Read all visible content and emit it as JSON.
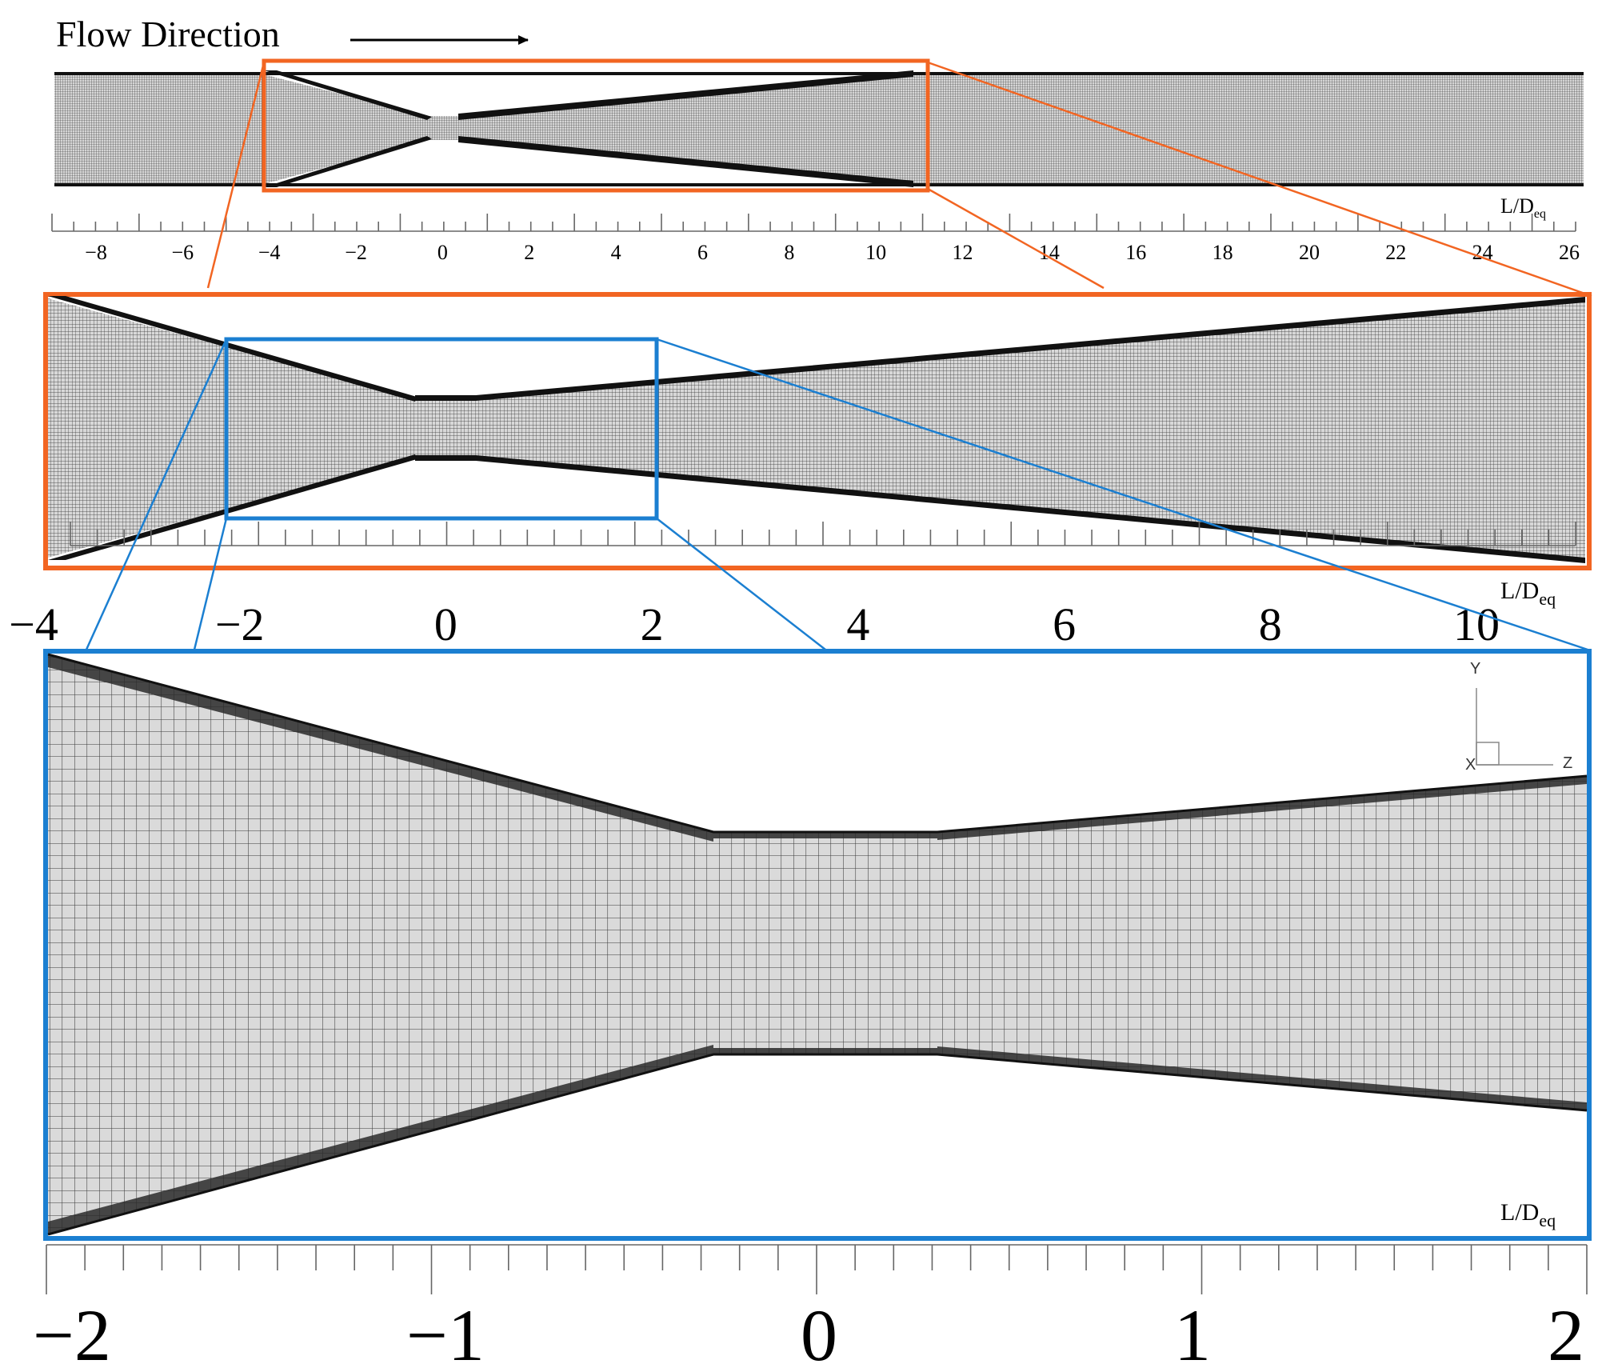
{
  "header": {
    "flow_label": "Flow Direction"
  },
  "axis_label": {
    "main": "L/D",
    "sub": "eq"
  },
  "panel_full": {
    "tick_labels": [
      "−8",
      "−6",
      "−4",
      "−2",
      "0",
      "2",
      "4",
      "6",
      "8",
      "10",
      "12",
      "14",
      "16",
      "18",
      "20",
      "22",
      "24",
      "26"
    ]
  },
  "panel_mid": {
    "tick_labels": [
      "−4",
      "−2",
      "0",
      "2",
      "4",
      "6",
      "8",
      "10"
    ]
  },
  "panel_zoom": {
    "tick_labels": [
      "−2",
      "−1",
      "0",
      "1",
      "2"
    ]
  },
  "axes_triad": {
    "y": "Y",
    "x": "X",
    "z": "Z"
  },
  "colors": {
    "orange": "#F26522",
    "blue": "#1B7FD1",
    "wall": "#111111",
    "mesh_fill": "#d8d8d8",
    "mesh_line": "#3a3a3a"
  }
}
